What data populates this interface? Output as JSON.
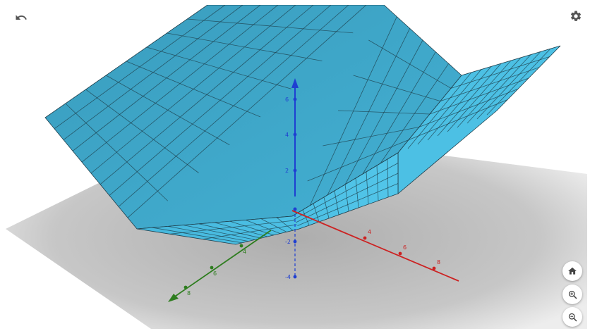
{
  "toolbar": {
    "undo_icon": "undo-icon",
    "settings_icon": "gear-icon"
  },
  "view_controls": {
    "home_icon": "home-icon",
    "zoom_in_icon": "zoom-in-icon",
    "zoom_out_icon": "zoom-out-icon"
  },
  "axes": {
    "x": {
      "color": "#cc2222",
      "ticks": [
        "4",
        "6",
        "8"
      ]
    },
    "y": {
      "color": "#2e7d1f",
      "ticks": [
        "4",
        "6",
        "8"
      ]
    },
    "z": {
      "color": "#1f3fd1",
      "ticks": [
        "2",
        "4",
        "6",
        "-2",
        "-4"
      ]
    }
  },
  "colors": {
    "surface_top": "#3aa6c6",
    "surface_front": "#47bde0",
    "plane_shadow": "#b8b8b8",
    "mesh": "#1e3d4a"
  }
}
